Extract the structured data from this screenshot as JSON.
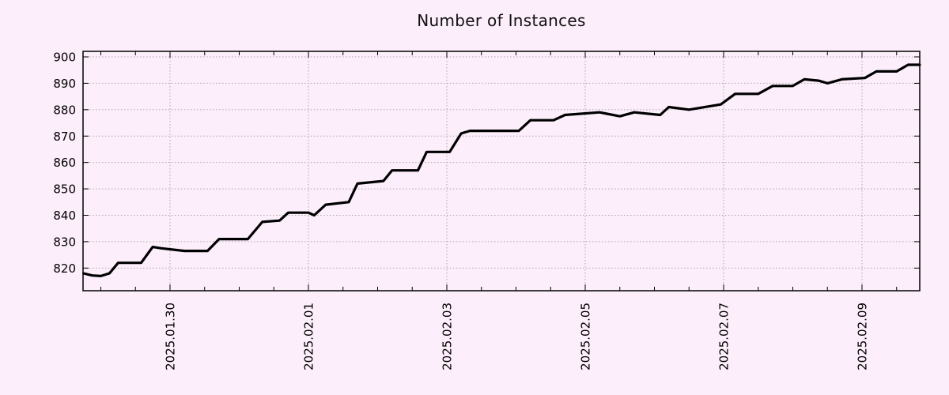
{
  "title": "Number of Instances",
  "colors": {
    "background": "#fceefa",
    "line": "#000000",
    "grid": "#a9a9a9",
    "axis": "#000000",
    "text": "#111111"
  },
  "chart_data": {
    "type": "line",
    "title": "Number of Instances",
    "series_name": "instances",
    "xlabel": "",
    "ylabel": "",
    "legend": "none",
    "grid": "dotted",
    "y_ticks": [
      820,
      830,
      840,
      850,
      860,
      870,
      880,
      890,
      900
    ],
    "ylim": [
      811.5,
      902
    ],
    "x_ticks": [
      {
        "label": "2025.01.30",
        "day": 0
      },
      {
        "label": "2025.02.01",
        "day": 2
      },
      {
        "label": "2025.02.03",
        "day": 4
      },
      {
        "label": "2025.02.05",
        "day": 6
      },
      {
        "label": "2025.02.07",
        "day": 8
      },
      {
        "label": "2025.02.09",
        "day": 10
      }
    ],
    "xlim_days": [
      -1.26,
      10.84
    ],
    "minor_tick_interval_days": 0.5,
    "points": [
      [
        "2025-01-28T18:00",
        818.0
      ],
      [
        "2025-01-28T21:00",
        817.2
      ],
      [
        "2025-01-29T00:00",
        817.0
      ],
      [
        "2025-01-29T03:00",
        818.0
      ],
      [
        "2025-01-29T06:00",
        822.0
      ],
      [
        "2025-01-29T14:00",
        822.0
      ],
      [
        "2025-01-29T18:00",
        828.0
      ],
      [
        "2025-01-29T21:00",
        827.5
      ],
      [
        "2025-01-30T05:00",
        826.5
      ],
      [
        "2025-01-30T13:00",
        826.5
      ],
      [
        "2025-01-30T17:00",
        831.0
      ],
      [
        "2025-01-31T03:00",
        831.0
      ],
      [
        "2025-01-31T08:00",
        837.5
      ],
      [
        "2025-01-31T14:00",
        838.0
      ],
      [
        "2025-01-31T17:00",
        841.0
      ],
      [
        "2025-02-01T00:00",
        841.0
      ],
      [
        "2025-02-01T02:00",
        840.0
      ],
      [
        "2025-02-01T06:00",
        844.0
      ],
      [
        "2025-02-01T14:00",
        845.0
      ],
      [
        "2025-02-01T17:00",
        852.0
      ],
      [
        "2025-02-02T02:00",
        853.0
      ],
      [
        "2025-02-02T05:00",
        857.0
      ],
      [
        "2025-02-02T14:00",
        857.0
      ],
      [
        "2025-02-02T17:00",
        864.0
      ],
      [
        "2025-02-03T01:00",
        864.0
      ],
      [
        "2025-02-03T05:00",
        871.0
      ],
      [
        "2025-02-03T08:00",
        872.0
      ],
      [
        "2025-02-04T01:00",
        872.0
      ],
      [
        "2025-02-04T05:00",
        876.0
      ],
      [
        "2025-02-04T13:00",
        876.0
      ],
      [
        "2025-02-04T17:00",
        878.0
      ],
      [
        "2025-02-05T05:00",
        879.0
      ],
      [
        "2025-02-05T12:00",
        877.5
      ],
      [
        "2025-02-05T17:00",
        879.0
      ],
      [
        "2025-02-06T02:00",
        878.0
      ],
      [
        "2025-02-06T05:00",
        881.0
      ],
      [
        "2025-02-06T12:00",
        880.0
      ],
      [
        "2025-02-06T23:00",
        882.0
      ],
      [
        "2025-02-07T04:00",
        886.0
      ],
      [
        "2025-02-07T12:00",
        886.0
      ],
      [
        "2025-02-07T17:00",
        889.0
      ],
      [
        "2025-02-08T00:00",
        889.0
      ],
      [
        "2025-02-08T04:00",
        891.5
      ],
      [
        "2025-02-08T09:00",
        891.0
      ],
      [
        "2025-02-08T12:00",
        890.0
      ],
      [
        "2025-02-08T17:00",
        891.5
      ],
      [
        "2025-02-09T01:00",
        892.0
      ],
      [
        "2025-02-09T05:00",
        894.5
      ],
      [
        "2025-02-09T12:00",
        894.5
      ],
      [
        "2025-02-09T16:00",
        897.0
      ],
      [
        "2025-02-09T20:00",
        897.0
      ]
    ]
  }
}
